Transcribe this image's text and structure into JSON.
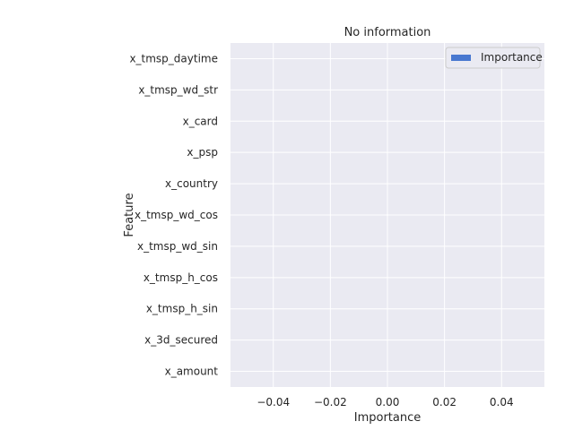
{
  "chart_data": {
    "type": "bar",
    "orientation": "horizontal",
    "title": "No information",
    "xlabel": "Importance",
    "ylabel": "Feature",
    "categories": [
      "x_tmsp_daytime",
      "x_tmsp_wd_str",
      "x_card",
      "x_psp",
      "x_country",
      "x_tmsp_wd_cos",
      "x_tmsp_wd_sin",
      "x_tmsp_h_cos",
      "x_tmsp_h_sin",
      "x_3d_secured",
      "x_amount"
    ],
    "series": [
      {
        "name": "Importance",
        "values": [
          0,
          0,
          0,
          0,
          0,
          0,
          0,
          0,
          0,
          0,
          0
        ]
      }
    ],
    "xlim": [
      -0.055,
      0.055
    ],
    "xticks": [
      -0.04,
      -0.02,
      0.0,
      0.02,
      0.04
    ],
    "xtick_labels": [
      "−0.04",
      "−0.02",
      "0.00",
      "0.02",
      "0.04"
    ],
    "grid": true,
    "legend_position": "top-right",
    "colors": {
      "plot_background": "#eaeaf2",
      "grid": "#ffffff",
      "series": "#4878d0",
      "text": "#262626"
    }
  }
}
